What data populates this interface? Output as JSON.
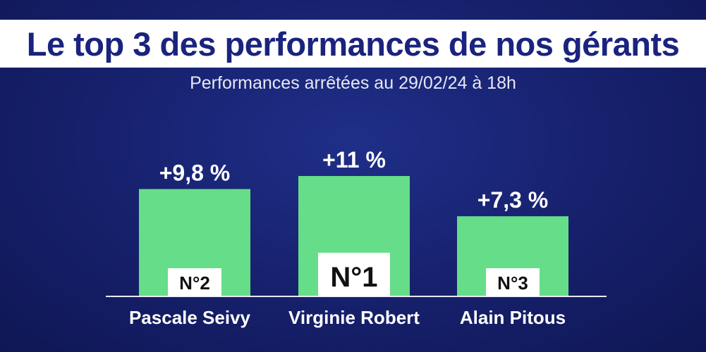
{
  "title": "Le top 3 des performances de nos gérants",
  "subtitle": "Performances arrêtées au 29/02/24 à 18h",
  "colors": {
    "bar": "#66dd88",
    "background": "#16206b",
    "title_text": "#1a237e"
  },
  "chart_data": {
    "type": "bar",
    "categories": [
      "Pascale Seivy",
      "Virginie Robert",
      "Alain Pitous"
    ],
    "values": [
      9.8,
      11,
      7.3
    ],
    "value_labels": [
      "+9,8 %",
      "+11 %",
      "+7,3 %"
    ],
    "ranks": [
      "N°2",
      "N°1",
      "N°3"
    ],
    "ylim": [
      0,
      11
    ],
    "grid": false
  }
}
